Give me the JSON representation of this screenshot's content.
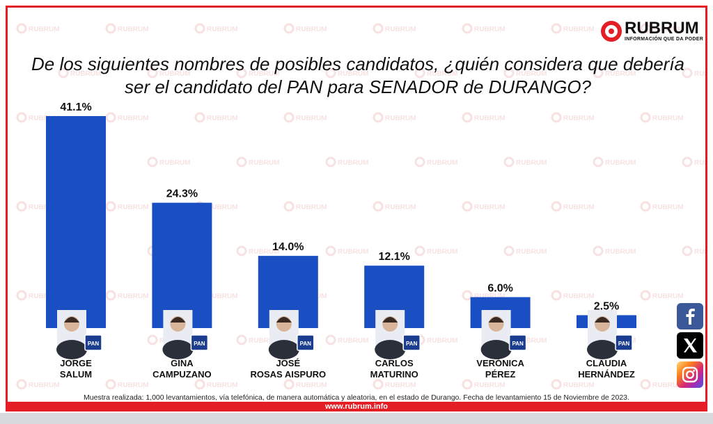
{
  "brand": {
    "name": "RUBRUM",
    "tagline": "INFORMACIÓN QUE DA PODER",
    "website": "www.rubrum.info",
    "red": "#e31e24"
  },
  "title_line1": "De los siguientes nombres de posibles candidatos, ¿quién considera que debería",
  "title_line2": "ser el candidato del PAN para SENADOR de DURANGO?",
  "footnote": "Muestra realizada: 1,000 levantamientos, vía telefónica, de manera automática y aleatoria, en el estado de Durango. Fecha de levantamiento 15 de Noviembre de 2023.",
  "party_badge": "PAN",
  "social": {
    "icons": [
      "facebook-icon",
      "x-icon",
      "instagram-icon"
    ]
  },
  "chart_data": {
    "type": "bar",
    "title": "De los siguientes nombres de posibles candidatos, ¿quién considera que debería ser el candidato del PAN para SENADOR de DURANGO?",
    "categories": [
      [
        "JORGE",
        "SALUM"
      ],
      [
        "GINA",
        "CAMPUZANO"
      ],
      [
        "JOSÉ",
        "ROSAS AISPURO"
      ],
      [
        "CARLOS",
        "MATURINO"
      ],
      [
        "VERÓNICA",
        "PÉREZ"
      ],
      [
        "CLAUDIA",
        "HERNÁNDEZ"
      ]
    ],
    "values": [
      41.1,
      24.3,
      14.0,
      12.1,
      6.0,
      2.5
    ],
    "value_labels": [
      "41.1%",
      "24.3%",
      "14.0%",
      "12.1%",
      "6.0%",
      "2.5%"
    ],
    "unit": "%",
    "bar_color": "#1a4fc4",
    "ylim": [
      0,
      41.1
    ],
    "grid": false,
    "xlabel": "",
    "ylabel": ""
  }
}
